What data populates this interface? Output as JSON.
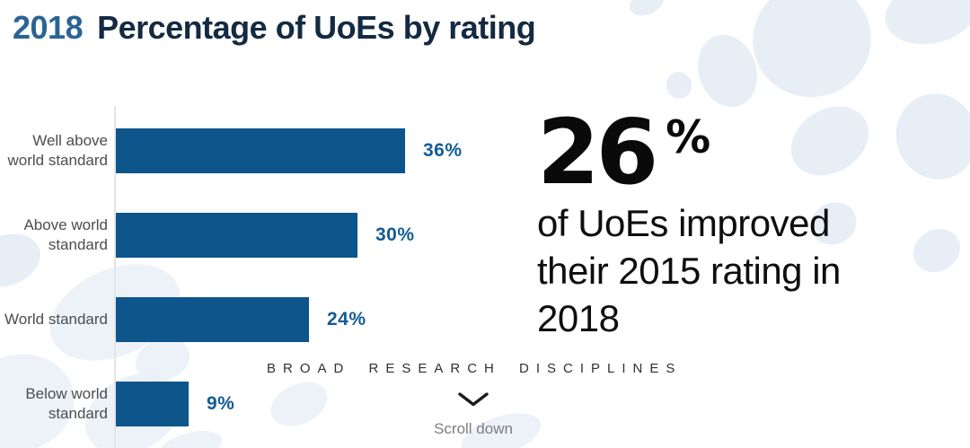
{
  "header": {
    "year": "2018",
    "title": "Percentage of UoEs by rating"
  },
  "chart_data": {
    "type": "bar",
    "orientation": "horizontal",
    "title": "2018 Percentage of UoEs by rating",
    "categories": [
      "Well above world standard",
      "Above world standard",
      "World standard",
      "Below world standard"
    ],
    "values": [
      36,
      30,
      24,
      9
    ],
    "unit": "%",
    "xlim": [
      0,
      40
    ],
    "grid": false,
    "legend": "none",
    "bar_color": "#0e558c",
    "rows": [
      {
        "label_lines": [
          "Well above",
          "world standard"
        ],
        "value_label": "36%"
      },
      {
        "label_lines": [
          "Above world",
          "standard"
        ],
        "value_label": "30%"
      },
      {
        "label_lines": [
          "World standard"
        ],
        "value_label": "24%"
      },
      {
        "label_lines": [
          "Below world",
          "standard"
        ],
        "value_label": "9%"
      }
    ]
  },
  "stat": {
    "value": "26",
    "unit": "%",
    "description_lines": [
      "of UoEs improved",
      "their 2015 rating in",
      "2018"
    ]
  },
  "footer": {
    "section_label": "BROAD RESEARCH DISCIPLINES",
    "scroll_hint": "Scroll down"
  },
  "colors": {
    "bar": "#0e558c",
    "year_accent": "#2a6494",
    "title_navy": "#142a42",
    "category_label": "#4b4d50",
    "value_label": "#135c96",
    "background_blob": "#e4ebf4"
  }
}
